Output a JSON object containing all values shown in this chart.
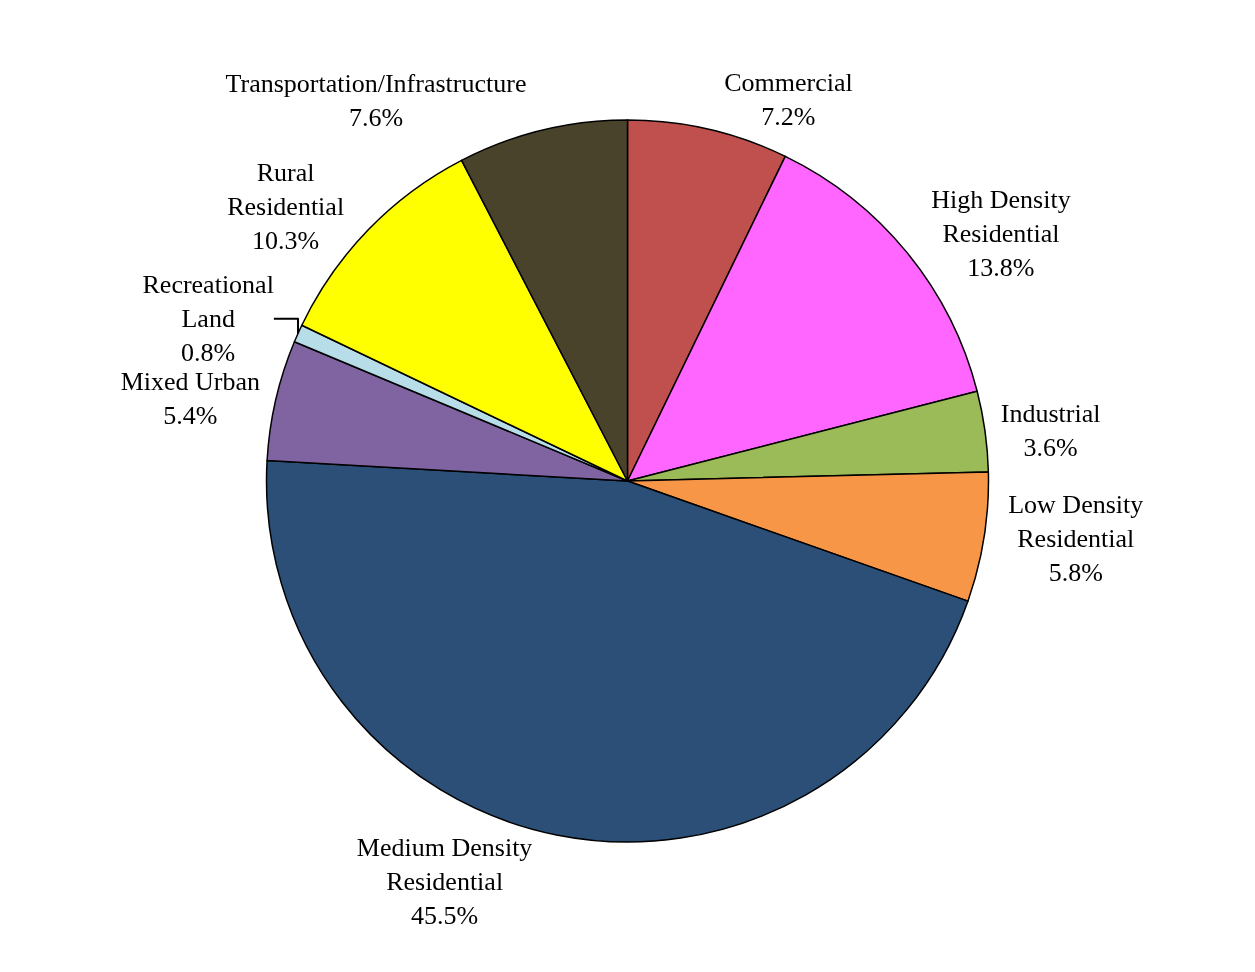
{
  "chart_data": {
    "type": "pie",
    "categories": [
      "Commercial",
      "High Density Residential",
      "Industrial",
      "Low Density Residential",
      "Medium Density Residential",
      "Mixed Urban",
      "Recreational Land",
      "Rural Residential",
      "Transportation/Infrastructure"
    ],
    "values": [
      7.2,
      13.8,
      3.6,
      5.8,
      45.5,
      5.4,
      0.8,
      10.3,
      7.6
    ],
    "value_labels": [
      "7.2%",
      "13.8%",
      "3.6%",
      "5.8%",
      "45.5%",
      "5.4%",
      "0.8%",
      "10.3%",
      "7.6%"
    ],
    "colors": [
      "#c0504d",
      "#ff66ff",
      "#9bbb59",
      "#f79646",
      "#2c4f77",
      "#8064a2",
      "#b7dde8",
      "#ffff00",
      "#4a432c"
    ],
    "legend": false
  }
}
